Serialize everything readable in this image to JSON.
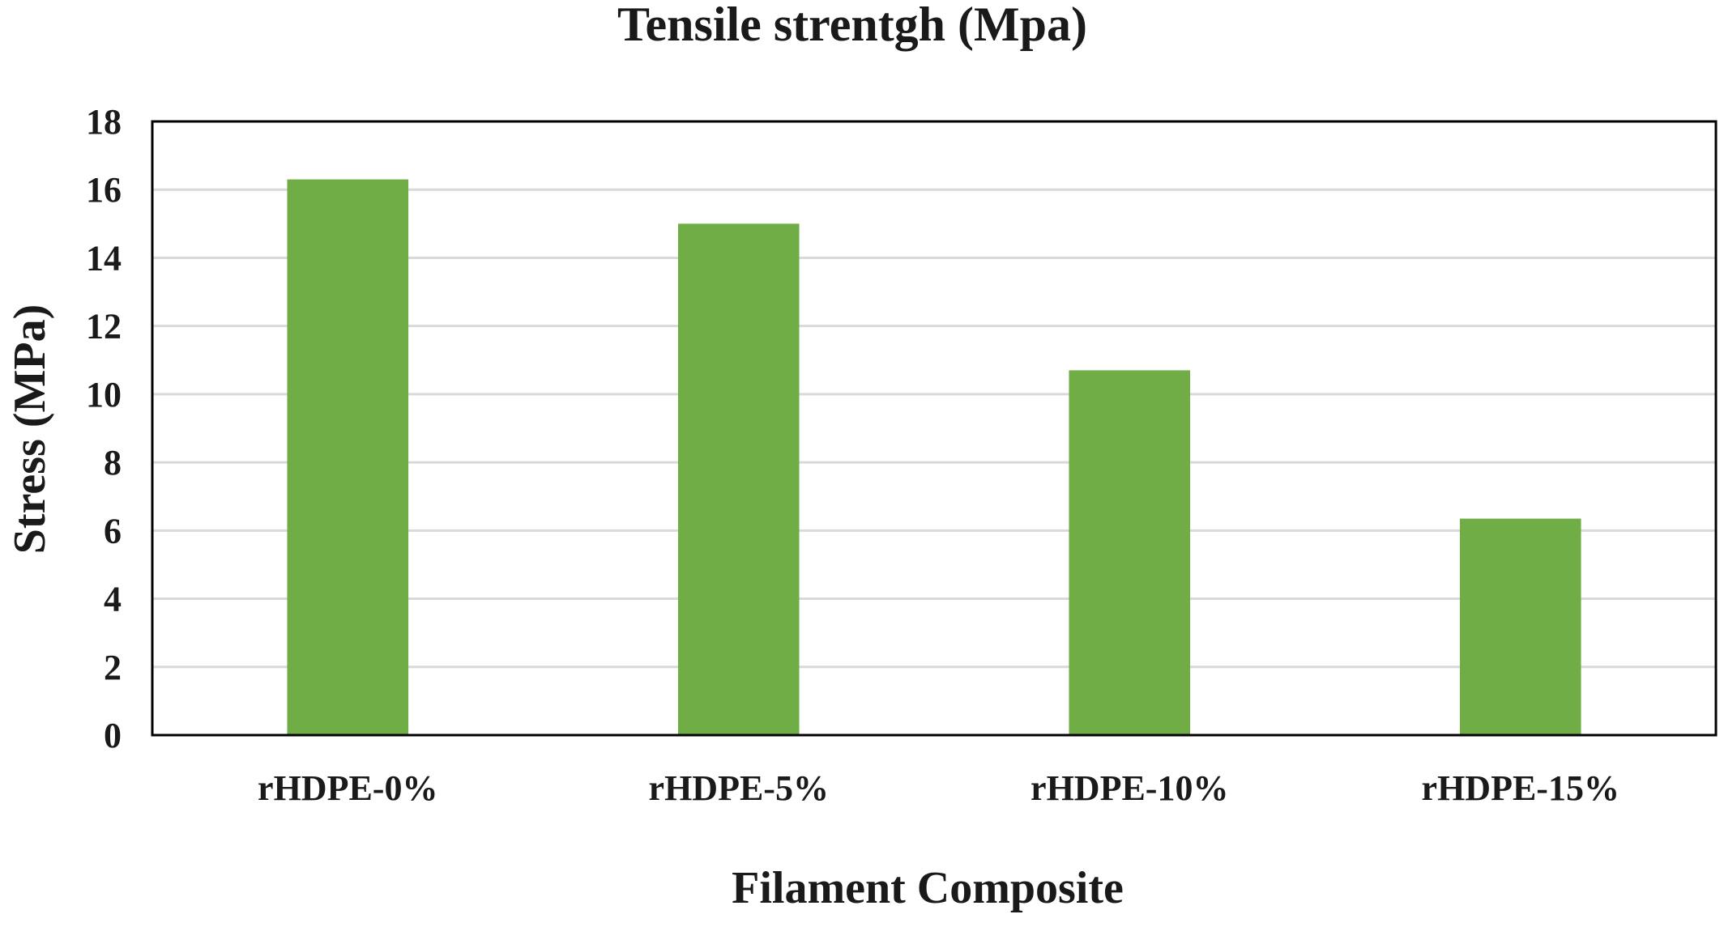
{
  "chart_data": {
    "type": "bar",
    "title": "Tensile strentgh (Mpa)",
    "xlabel": "Filament Composite",
    "ylabel": "Stress (MPa)",
    "categories": [
      "rHDPE-0%",
      "rHDPE-5%",
      "rHDPE-10%",
      "rHDPE-15%"
    ],
    "values": [
      16.3,
      15.0,
      10.7,
      6.35
    ],
    "ylim": [
      0,
      18
    ],
    "yticks": [
      "0",
      "2",
      "4",
      "6",
      "8",
      "10",
      "12",
      "14",
      "16",
      "18"
    ],
    "grid": true,
    "legend": "none",
    "bar_color": "#70AD47",
    "grid_color": "#D9D9D9",
    "frame_color": "#000000"
  }
}
